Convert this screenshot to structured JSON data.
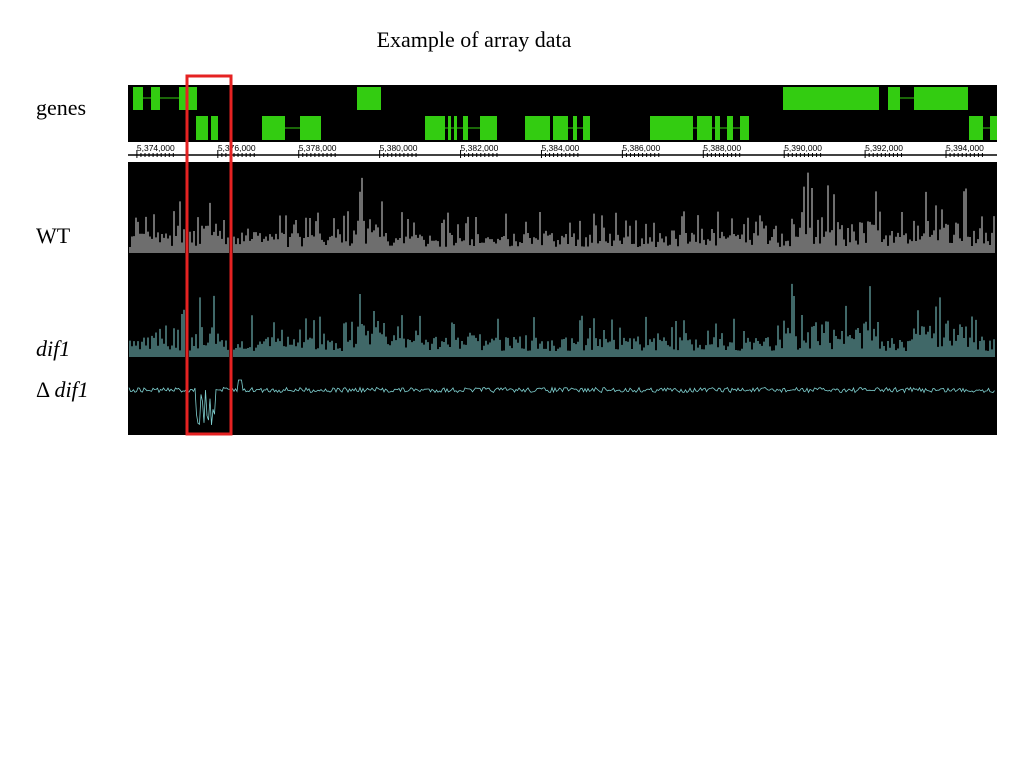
{
  "title": "Example of array data",
  "tracks": [
    {
      "label": "genes"
    },
    {
      "label": "WT"
    },
    {
      "label": "dif1"
    },
    {
      "symbol": "Δ",
      "label": "dif1"
    }
  ],
  "axis": {
    "xlim": [
      5373780,
      5395260
    ],
    "xticks": [
      {
        "value": 5374000,
        "label": "5,374,000"
      },
      {
        "value": 5376000,
        "label": "5,376,000"
      },
      {
        "value": 5378000,
        "label": "5,378,000"
      },
      {
        "value": 5380000,
        "label": "5,380,000"
      },
      {
        "value": 5382000,
        "label": "5,382,000"
      },
      {
        "value": 5384000,
        "label": "5,384,000"
      },
      {
        "value": 5386000,
        "label": "5,386,000"
      },
      {
        "value": 5388000,
        "label": "5,388,000"
      },
      {
        "value": 5390000,
        "label": "5,390,000"
      },
      {
        "value": 5392000,
        "label": "5,392,000"
      },
      {
        "value": 5394000,
        "label": "5,394,000"
      }
    ]
  }
}
